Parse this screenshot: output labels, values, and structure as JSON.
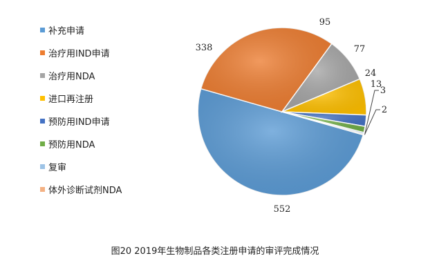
{
  "caption": "图20 2019年生物制品各类注册申请的审评完成情况",
  "chart_data": {
    "type": "pie",
    "title": "",
    "legend_position": "left",
    "categories": [
      "补充申请",
      "治疗用IND申请",
      "治疗用NDA",
      "进口再注册",
      "预防用IND申请",
      "预防用NDA",
      "复审",
      "体外诊断试剂NDA"
    ],
    "values": [
      552,
      338,
      95,
      77,
      24,
      13,
      3,
      2
    ],
    "colors": [
      "#5B9BD5",
      "#ED7D31",
      "#A5A5A5",
      "#FFC000",
      "#4472C4",
      "#70AD47",
      "#9DC3E6",
      "#F4B183"
    ]
  }
}
